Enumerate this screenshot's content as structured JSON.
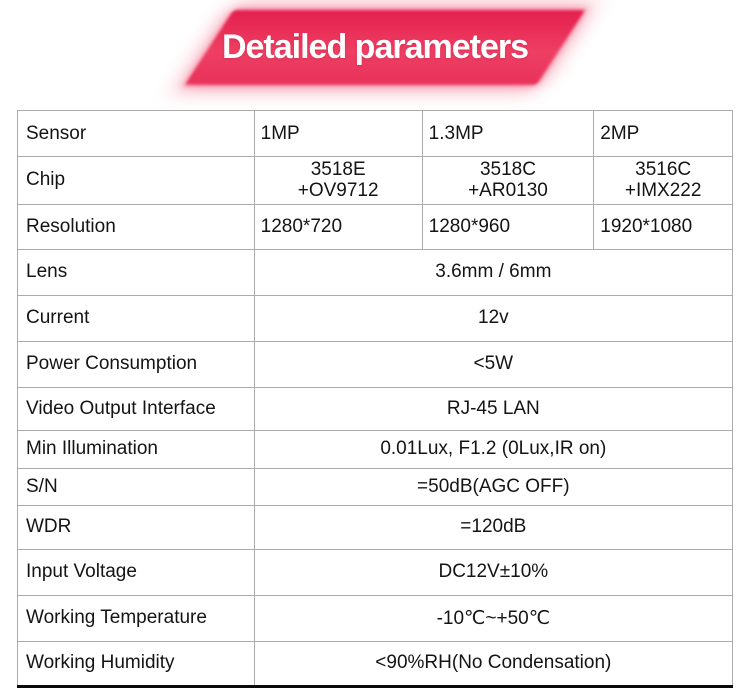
{
  "banner": {
    "title": "Detailed parameters",
    "colors": {
      "top": "#e41f4e",
      "mid": "#ee3f63",
      "bottom": "#e9325b",
      "text": "#ffffff"
    }
  },
  "table": {
    "rows": [
      {
        "label": "Sensor",
        "align": "left",
        "cells": [
          {
            "text": "1MP"
          },
          {
            "text": "1.3MP"
          },
          {
            "text": "2MP"
          }
        ]
      },
      {
        "label": "Chip",
        "align": "center",
        "cells": [
          {
            "lines": [
              "3518E",
              "+OV9712"
            ]
          },
          {
            "lines": [
              "3518C",
              "+AR0130"
            ]
          },
          {
            "lines": [
              "3516C",
              "+IMX222"
            ]
          }
        ]
      },
      {
        "label": "Resolution",
        "align": "left",
        "cells": [
          {
            "text": "1280*720"
          },
          {
            "text": "1280*960"
          },
          {
            "text": "1920*1080"
          }
        ]
      },
      {
        "label": "Lens",
        "span": "3.6mm / 6mm"
      },
      {
        "label": "Current",
        "span": "12v"
      },
      {
        "label": "Power Consumption",
        "span": "<5W"
      },
      {
        "label": "Video Output Interface",
        "span": "RJ-45 LAN"
      },
      {
        "label": "Min Illumination",
        "span": "0.01Lux, F1.2 (0Lux,IR on)"
      },
      {
        "label": "S/N",
        "span": "=50dB(AGC OFF)"
      },
      {
        "label": "WDR",
        "span": "=120dB"
      },
      {
        "label": "Input Voltage",
        "span": "DC12V±10%"
      },
      {
        "label": "Working Temperature",
        "span": "-10℃~+50℃"
      },
      {
        "label": "Working Humidity",
        "span": "<90%RH(No Condensation)"
      }
    ]
  }
}
